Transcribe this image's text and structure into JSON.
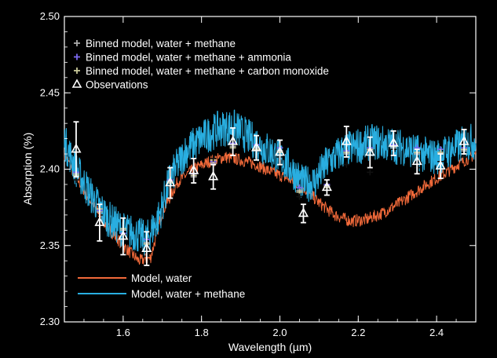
{
  "chart_data": {
    "type": "line",
    "title": "",
    "xlabel": "Wavelength (µm)",
    "ylabel": "Absorption (%)",
    "xlim": [
      1.45,
      2.5
    ],
    "ylim": [
      2.3,
      2.5
    ],
    "xticks": [
      1.6,
      1.8,
      2.0,
      2.2,
      2.4
    ],
    "xtick_labels": [
      "1.6",
      "1.8",
      "2.0",
      "2.2",
      "2.4"
    ],
    "yticks": [
      2.3,
      2.35,
      2.4,
      2.45,
      2.5
    ],
    "ytick_labels": [
      "2.30",
      "2.35",
      "2.40",
      "2.45",
      "2.50"
    ],
    "grid": false,
    "background": "#000000",
    "legend_top": {
      "placement": "top-left",
      "entries": [
        {
          "label": "Binned model, water + methane",
          "marker": "cross",
          "color": "#aaaaaa"
        },
        {
          "label": "Binned model, water + methane + ammonia",
          "marker": "cross",
          "color": "#7b68ee"
        },
        {
          "label": "Binned model, water + methane + carbon monoxide",
          "marker": "cross",
          "color": "#c8c89a"
        },
        {
          "label": "Observations",
          "marker": "triangle",
          "color": "#ffffff"
        }
      ]
    },
    "legend_bottom": {
      "placement": "bottom-left",
      "entries": [
        {
          "label": "Model, water",
          "color": "#f26a3a"
        },
        {
          "label": "Model, water + methane",
          "color": "#29aee0"
        }
      ]
    },
    "series": [
      {
        "name": "Model, water",
        "color": "#f26a3a",
        "x": [
          1.45,
          1.48,
          1.52,
          1.56,
          1.6,
          1.64,
          1.67,
          1.7,
          1.74,
          1.78,
          1.82,
          1.86,
          1.9,
          1.94,
          1.98,
          2.02,
          2.06,
          2.1,
          2.14,
          2.18,
          2.22,
          2.26,
          2.3,
          2.34,
          2.38,
          2.42,
          2.46,
          2.5
        ],
        "y": [
          2.41,
          2.395,
          2.378,
          2.362,
          2.35,
          2.34,
          2.342,
          2.372,
          2.392,
          2.4,
          2.405,
          2.408,
          2.406,
          2.403,
          2.398,
          2.394,
          2.388,
          2.378,
          2.37,
          2.366,
          2.367,
          2.371,
          2.377,
          2.384,
          2.391,
          2.397,
          2.404,
          2.41
        ],
        "noise": 0.004
      },
      {
        "name": "Model, water + methane",
        "color": "#29aee0",
        "x": [
          1.45,
          1.48,
          1.52,
          1.56,
          1.6,
          1.63,
          1.66,
          1.69,
          1.72,
          1.76,
          1.8,
          1.84,
          1.88,
          1.92,
          1.96,
          2.0,
          2.03,
          2.06,
          2.09,
          2.12,
          2.16,
          2.2,
          2.24,
          2.28,
          2.32,
          2.36,
          2.4,
          2.44,
          2.48,
          2.5
        ],
        "y": [
          2.418,
          2.4,
          2.382,
          2.368,
          2.36,
          2.358,
          2.354,
          2.368,
          2.394,
          2.412,
          2.42,
          2.426,
          2.428,
          2.421,
          2.414,
          2.408,
          2.4,
          2.39,
          2.392,
          2.404,
          2.412,
          2.415,
          2.418,
          2.416,
          2.414,
          2.41,
          2.408,
          2.413,
          2.418,
          2.418
        ],
        "noise": 0.012
      }
    ],
    "binned_water_methane": {
      "name": "Binned model, water + methane",
      "color": "#aaaaaa",
      "x": [
        1.48,
        1.54,
        1.6,
        1.66,
        1.72,
        1.78,
        1.83,
        1.88,
        1.94,
        2.0,
        2.05,
        2.12,
        2.17,
        2.23,
        2.29,
        2.35,
        2.41,
        2.47
      ],
      "y": [
        2.397,
        2.372,
        2.36,
        2.352,
        2.392,
        2.395,
        2.404,
        2.415,
        2.414,
        2.412,
        2.386,
        2.389,
        2.41,
        2.412,
        2.414,
        2.41,
        2.41,
        2.412
      ]
    },
    "binned_ammonia": {
      "name": "Binned model, water + methane + ammonia",
      "color": "#7b68ee",
      "x": [
        1.48,
        1.54,
        1.6,
        1.66,
        1.72,
        1.78,
        1.83,
        1.88,
        1.94,
        2.0,
        2.05,
        2.12,
        2.17,
        2.23,
        2.29,
        2.35,
        2.41,
        2.47
      ],
      "y": [
        2.398,
        2.373,
        2.358,
        2.354,
        2.393,
        2.397,
        2.405,
        2.417,
        2.416,
        2.414,
        2.388,
        2.39,
        2.412,
        2.414,
        2.416,
        2.414,
        2.413,
        2.414
      ]
    },
    "binned_co": {
      "name": "Binned model, water + methane + carbon monoxide",
      "color": "#c8c89a",
      "x": [
        1.48,
        1.54,
        1.6,
        1.66,
        1.72,
        1.78,
        1.83,
        1.88,
        1.94,
        2.0,
        2.05,
        2.12,
        2.17,
        2.23,
        2.29,
        2.35,
        2.41,
        2.47
      ],
      "y": [
        2.396,
        2.374,
        2.361,
        2.351,
        2.391,
        2.396,
        2.406,
        2.414,
        2.413,
        2.411,
        2.385,
        2.388,
        2.411,
        2.413,
        2.415,
        2.411,
        2.411,
        2.413
      ]
    },
    "binned_water_methane_co_black": {
      "name": "Binned model, water",
      "color": "#111111",
      "x": [
        1.48,
        1.54,
        1.6,
        1.66,
        1.72,
        1.78,
        1.83,
        1.88,
        1.94,
        2.0,
        2.05,
        2.12,
        2.17,
        2.23,
        2.29,
        2.35,
        2.41,
        2.47
      ],
      "y": [
        2.393,
        2.37,
        2.357,
        2.343,
        2.389,
        2.393,
        2.407,
        2.413,
        2.412,
        2.408,
        2.382,
        2.386,
        2.403,
        2.398,
        2.413,
        2.401,
        2.405,
        2.408
      ]
    },
    "observations": {
      "name": "Observations",
      "color": "#ffffff",
      "x": [
        1.48,
        1.54,
        1.6,
        1.66,
        1.72,
        1.78,
        1.83,
        1.88,
        1.94,
        2.0,
        2.06,
        2.12,
        2.17,
        2.23,
        2.29,
        2.35,
        2.41,
        2.47
      ],
      "y": [
        2.413,
        2.365,
        2.356,
        2.348,
        2.391,
        2.399,
        2.395,
        2.418,
        2.414,
        2.411,
        2.371,
        2.388,
        2.418,
        2.411,
        2.417,
        2.405,
        2.402,
        2.418
      ],
      "err": [
        0.018,
        0.012,
        0.012,
        0.011,
        0.01,
        0.008,
        0.008,
        0.009,
        0.008,
        0.008,
        0.006,
        0.005,
        0.01,
        0.01,
        0.008,
        0.008,
        0.008,
        0.008
      ]
    }
  }
}
